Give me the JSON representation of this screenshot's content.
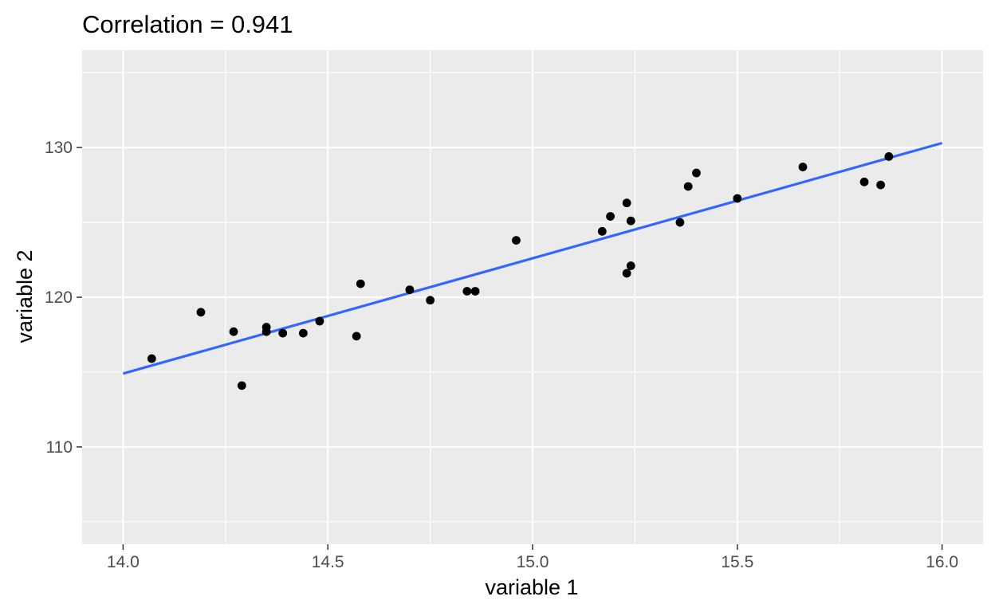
{
  "chart_data": {
    "type": "scatter",
    "title": "Correlation = 0.941",
    "xlabel": "variable 1",
    "ylabel": "variable 2",
    "xlim": [
      13.9,
      16.1
    ],
    "ylim": [
      103.5,
      136.5
    ],
    "x_ticks": [
      14.0,
      14.5,
      15.0,
      15.5,
      16.0
    ],
    "x_tick_labels": [
      "14.0",
      "14.5",
      "15.0",
      "15.5",
      "16.0"
    ],
    "x_minor_ticks": [
      14.25,
      14.75,
      15.25,
      15.75
    ],
    "y_ticks": [
      110,
      120,
      130
    ],
    "y_tick_labels": [
      "110",
      "120",
      "130"
    ],
    "y_minor_ticks": [
      105,
      115,
      125,
      135
    ],
    "grid": true,
    "legend": "none",
    "colors": {
      "panel": "#ebebeb",
      "grid": "#ffffff",
      "points": "#000000",
      "fit_line": "#3366ff"
    },
    "points": [
      {
        "x": 14.07,
        "y": 115.9
      },
      {
        "x": 14.19,
        "y": 119.0
      },
      {
        "x": 14.27,
        "y": 117.7
      },
      {
        "x": 14.29,
        "y": 114.1
      },
      {
        "x": 14.35,
        "y": 118.0
      },
      {
        "x": 14.35,
        "y": 117.7
      },
      {
        "x": 14.39,
        "y": 117.6
      },
      {
        "x": 14.44,
        "y": 117.6
      },
      {
        "x": 14.48,
        "y": 118.4
      },
      {
        "x": 14.57,
        "y": 117.4
      },
      {
        "x": 14.58,
        "y": 120.9
      },
      {
        "x": 14.7,
        "y": 120.5
      },
      {
        "x": 14.75,
        "y": 119.8
      },
      {
        "x": 14.84,
        "y": 120.4
      },
      {
        "x": 14.86,
        "y": 120.4
      },
      {
        "x": 14.96,
        "y": 123.8
      },
      {
        "x": 15.17,
        "y": 124.4
      },
      {
        "x": 15.19,
        "y": 125.4
      },
      {
        "x": 15.23,
        "y": 121.6
      },
      {
        "x": 15.23,
        "y": 126.3
      },
      {
        "x": 15.24,
        "y": 125.1
      },
      {
        "x": 15.24,
        "y": 122.1
      },
      {
        "x": 15.36,
        "y": 125.0
      },
      {
        "x": 15.38,
        "y": 127.4
      },
      {
        "x": 15.4,
        "y": 128.3
      },
      {
        "x": 15.5,
        "y": 126.6
      },
      {
        "x": 15.66,
        "y": 128.7
      },
      {
        "x": 15.81,
        "y": 127.7
      },
      {
        "x": 15.85,
        "y": 127.5
      },
      {
        "x": 15.87,
        "y": 129.4
      }
    ],
    "fit_line": {
      "x": [
        14.0,
        16.0
      ],
      "y": [
        114.9,
        130.3
      ]
    }
  }
}
